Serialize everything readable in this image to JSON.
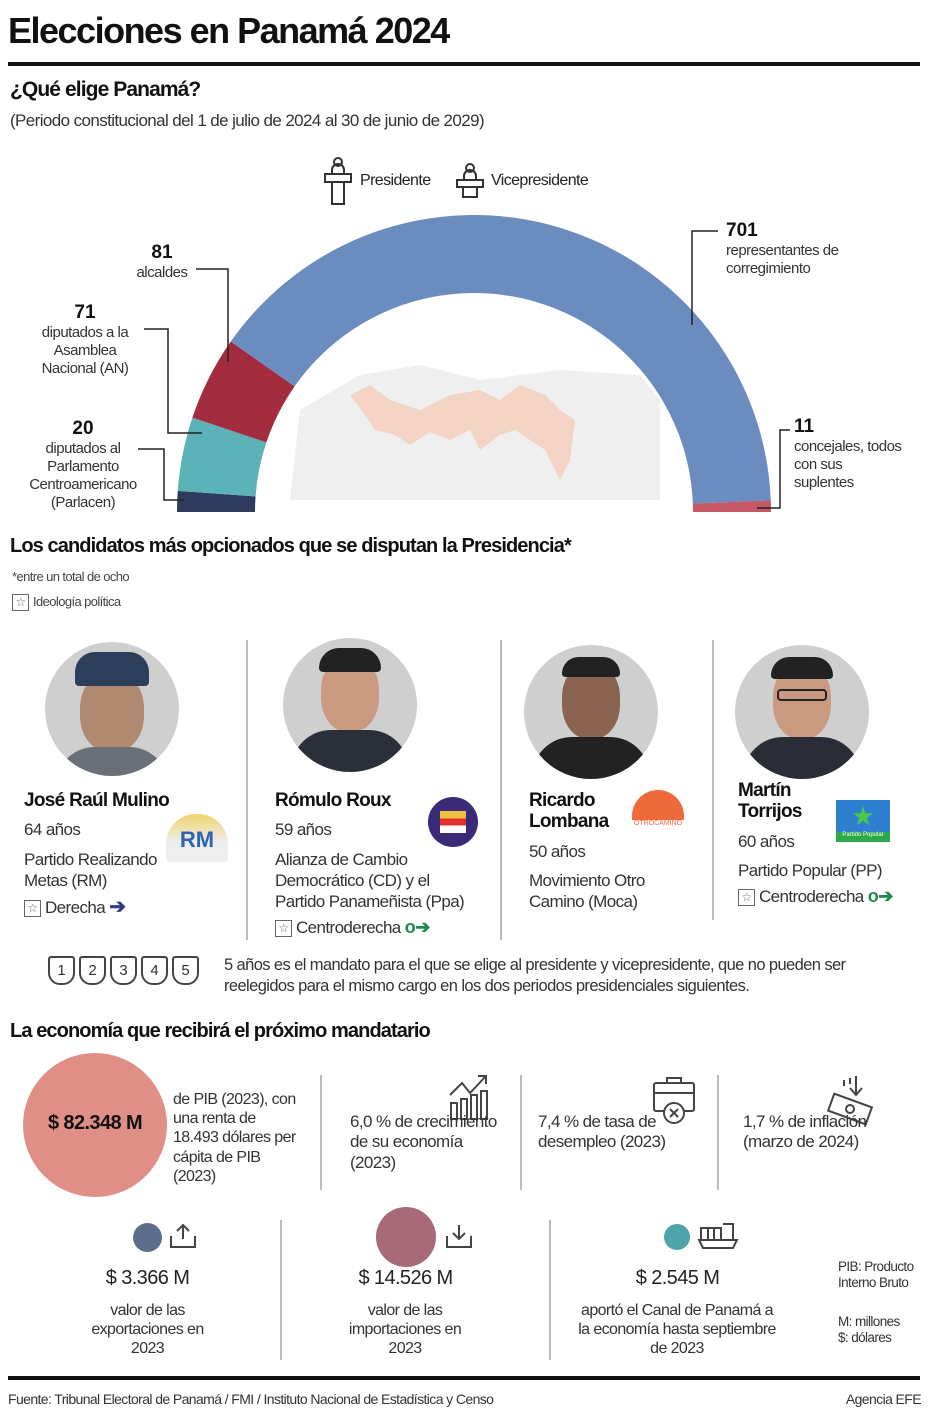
{
  "title": "Elecciones en Panamá 2024",
  "section1": {
    "heading": "¿Qué elige Panamá?",
    "subtitle": "(Periodo constitucional del 1 de julio de 2024 al 30 de junio de 2029)",
    "executive": [
      {
        "label": "Presidente",
        "icon": "podium-person-icon"
      },
      {
        "label": "Vicepresidente",
        "icon": "podium-person-icon"
      }
    ],
    "seats": [
      {
        "value": 20,
        "label": "diputados al Parlamento Centroamericano (Parlacen)",
        "color": "#2e3b5e"
      },
      {
        "value": 71,
        "label": "diputados a la Asamblea Nacional (AN)",
        "color": "#5bb3b8"
      },
      {
        "value": 81,
        "label": "alcaldes",
        "color": "#a32c3f"
      },
      {
        "value": 701,
        "label": "representantes de corregimiento",
        "color": "#6b8cbf"
      },
      {
        "value": 11,
        "label": "concejales, todos con sus suplentes",
        "color": "#c45866"
      }
    ]
  },
  "section2": {
    "heading": "Los candidatos más opcionados que se disputan la Presidencia*",
    "note": "*entre un total de ocho",
    "legend": "Ideología política",
    "candidates": [
      {
        "name": "José Raúl Mulino",
        "age": "64 años",
        "party": "Partido Realizando Metas (RM)",
        "ideology": "Derecha",
        "logo": "RM"
      },
      {
        "name": "Rómulo Roux",
        "age": "59 años",
        "party": "Alianza de Cambio Democrático (CD) y el Partido Panameñista (Ppa)",
        "ideology": "Centroderecha"
      },
      {
        "name": "Ricardo Lombana",
        "age": "50 años",
        "party": "Movimiento Otro Camino (Moca)",
        "ideology": "",
        "logo": "OTROCAMINO"
      },
      {
        "name": "Martín Torrijos",
        "age": "60 años",
        "party": "Partido Popular (PP)",
        "ideology": "Centroderecha",
        "logo": "Partido Popular"
      }
    ],
    "term_years": [
      "1",
      "2",
      "3",
      "4",
      "5"
    ],
    "term_text": "5 años es el mandato para el que se elige al presidente y vicepresidente, que no pueden ser reelegidos para el mismo cargo en los dos periodos presidenciales siguientes."
  },
  "section3": {
    "heading": "La economía que recibirá el próximo mandatario",
    "gdp": {
      "value": "$ 82.348 M",
      "text": "de PIB (2023), con una renta de 18.493 dólares per cápita de PIB (2023)",
      "color": "#e08f86"
    },
    "indicators": [
      {
        "text": "6,0 % de crecimiento de su economía (2023)",
        "icon": "growth-chart-icon"
      },
      {
        "text": "7,4 % de tasa de desempleo (2023)",
        "icon": "briefcase-x-icon"
      },
      {
        "text": "1,7 % de inflación (marzo de 2024)",
        "icon": "money-down-icon"
      }
    ],
    "trade": [
      {
        "value": "$ 3.366 M",
        "text": "valor de las exportaciones en 2023",
        "color": "#5b6f8c",
        "icon": "export-icon"
      },
      {
        "value": "$ 14.526 M",
        "text": "valor de las importaciones en 2023",
        "color": "#a86a78",
        "icon": "import-icon"
      },
      {
        "value": "$ 2.545 M",
        "text": "aportó el Canal de Panamá a la economía hasta septiembre de 2023",
        "color": "#4fa3ab",
        "icon": "ship-icon"
      }
    ],
    "glossary": [
      "PIB: Producto Interno Bruto",
      "M: millones",
      "$: dólares"
    ]
  },
  "footer": {
    "source": "Fuente: Tribunal Electoral de Panamá / FMI / Instituto Nacional de Estadística y Censo",
    "credit": "Agencia EFE"
  }
}
